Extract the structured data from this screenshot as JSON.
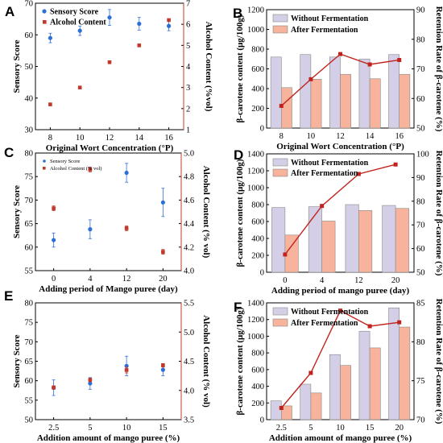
{
  "colors": {
    "blue": "#2d6fd6",
    "red_point": "#c0392b",
    "line": "#c0231d",
    "bar_purple": "#d4cfe6",
    "bar_orange": "#f7b39b",
    "axis_red": "#c0392b"
  },
  "chart_data": [
    {
      "panel": "A",
      "type": "scatter",
      "xlabel": "Original Wort Concentration (°P)",
      "ylabel": "Sensory Score",
      "y2label": "Alcohol Content (%vol)",
      "categories": [
        "8",
        "10",
        "12",
        "14",
        "16"
      ],
      "ylim": [
        30,
        70
      ],
      "yticks": [
        30,
        40,
        50,
        60,
        70
      ],
      "y2lim": [
        1,
        7
      ],
      "y2ticks": [
        1,
        2,
        3,
        4,
        5,
        6,
        7
      ],
      "legend": "top-left",
      "series": [
        {
          "name": "Sensory Score",
          "axis": "left",
          "marker": "circle",
          "values": [
            59,
            61.3,
            65.5,
            63.5,
            62.8
          ],
          "errors": [
            1.5,
            1.5,
            2.5,
            2,
            1.5
          ]
        },
        {
          "name": "Alcohol Content",
          "axis": "right",
          "marker": "square",
          "values": [
            2.2,
            3.0,
            4.2,
            5.0,
            6.2
          ],
          "errors": [
            0,
            0,
            0,
            0,
            0
          ]
        }
      ]
    },
    {
      "panel": "B",
      "type": "bar",
      "xlabel": "Original Wort Concentration (°P)",
      "ylabel": "β-carotene content (μg/100g)",
      "y2label": "Retention Rate of β-carotene (%)",
      "categories": [
        "8",
        "10",
        "12",
        "14",
        "16"
      ],
      "ylim": [
        0,
        1200
      ],
      "yticks": [
        0,
        200,
        400,
        600,
        800,
        1000,
        1200
      ],
      "y2lim": [
        50,
        90
      ],
      "y2ticks": [
        50,
        60,
        70,
        80,
        90
      ],
      "legend": "top-left",
      "series": [
        {
          "name": "Without Fermentation",
          "values": [
            720,
            745,
            720,
            700,
            745
          ]
        },
        {
          "name": "After Fermentation",
          "values": [
            410,
            495,
            545,
            500,
            545
          ]
        }
      ],
      "line": {
        "axis": "right",
        "values": [
          57.5,
          66.5,
          75,
          71.5,
          73
        ]
      }
    },
    {
      "panel": "C",
      "type": "scatter",
      "xlabel": "Adding period of Mango puree (day)",
      "ylabel": "Sensory Score",
      "y2label": "Alcohol Content (% vol)",
      "categories": [
        "0",
        "4",
        "12",
        "20"
      ],
      "ylim": [
        55,
        80
      ],
      "yticks": [
        55,
        60,
        65,
        70,
        75,
        80
      ],
      "y2lim": [
        4.0,
        5.0
      ],
      "y2ticks": [
        "4.0",
        "4.2",
        "4.4",
        "4.6",
        "4.8",
        "5.0"
      ],
      "legend": "top-left",
      "series": [
        {
          "name": "Sensory Score",
          "axis": "left",
          "marker": "circle",
          "values": [
            61.5,
            63.8,
            75.8,
            69.5
          ],
          "errors": [
            1.5,
            2,
            2,
            3
          ]
        },
        {
          "name": "Alcohol Content (% vol)",
          "axis": "right",
          "marker": "square",
          "values": [
            4.53,
            4.86,
            4.36,
            4.16
          ],
          "errors": [
            0.02,
            0.02,
            0.02,
            0.02
          ]
        }
      ]
    },
    {
      "panel": "D",
      "type": "bar",
      "xlabel": "Adding period of mango puree (day)",
      "ylabel": "β-carotene content (μg/100g)",
      "y2label": "Retention Rate of β-carotene (%)",
      "categories": [
        "0",
        "4",
        "12",
        "20"
      ],
      "ylim": [
        0,
        1400
      ],
      "yticks": [
        0,
        200,
        400,
        600,
        800,
        1000,
        1200,
        1400
      ],
      "y2lim": [
        50,
        100
      ],
      "y2ticks": [
        50,
        60,
        70,
        80,
        90,
        100
      ],
      "legend": "top-left",
      "series": [
        {
          "name": "Without Fermentation",
          "values": [
            765,
            775,
            800,
            790
          ]
        },
        {
          "name": "After Fermentation",
          "values": [
            440,
            605,
            730,
            755
          ]
        }
      ],
      "line": {
        "axis": "right",
        "values": [
          57.5,
          78,
          91.5,
          95.5
        ]
      }
    },
    {
      "panel": "E",
      "type": "scatter",
      "xlabel": "Addition amount of mango puree (%)",
      "ylabel": "Sensory Score",
      "y2label": "Alcohol Content (% vol)",
      "categories": [
        "2.5",
        "5",
        "10",
        "15"
      ],
      "ylim": [
        50,
        80
      ],
      "yticks": [
        50,
        55,
        60,
        65,
        70,
        75,
        80
      ],
      "y2lim": [
        3.5,
        5.5
      ],
      "y2ticks": [
        "3.5",
        "4.0",
        "4.5",
        "5.0",
        "5.5"
      ],
      "series": [
        {
          "name": "Sensory Score",
          "axis": "left",
          "marker": "circle",
          "values": [
            58.2,
            59.3,
            63.8,
            62.8
          ],
          "errors": [
            2,
            1.5,
            2.5,
            1.5
          ]
        },
        {
          "name": "Alcohol Content",
          "axis": "right",
          "marker": "square",
          "values": [
            4.05,
            4.18,
            4.35,
            4.43
          ],
          "errors": [
            0.03,
            0.03,
            0.05,
            0.03
          ]
        }
      ]
    },
    {
      "panel": "F",
      "type": "bar",
      "xlabel": "Addition amount of mango puree (%)",
      "ylabel": "β-carotene content (μg/100g)",
      "y2label": "Retention Rate of β-carotene (%)",
      "categories": [
        "2.5",
        "5",
        "10",
        "15",
        "20"
      ],
      "ylim": [
        0,
        1400
      ],
      "yticks": [
        0,
        200,
        400,
        600,
        800,
        1000,
        1200,
        1400
      ],
      "y2lim": [
        70,
        85
      ],
      "y2ticks": [
        70,
        75,
        80,
        85
      ],
      "legend": "top-left",
      "series": [
        {
          "name": "Without Fermentation",
          "values": [
            225,
            425,
            780,
            1060,
            1340
          ]
        },
        {
          "name": "After Fermentation",
          "values": [
            165,
            320,
            650,
            860,
            1110
          ]
        }
      ],
      "line": {
        "axis": "right",
        "values": [
          71.5,
          76,
          84,
          82,
          82.5
        ]
      }
    }
  ]
}
